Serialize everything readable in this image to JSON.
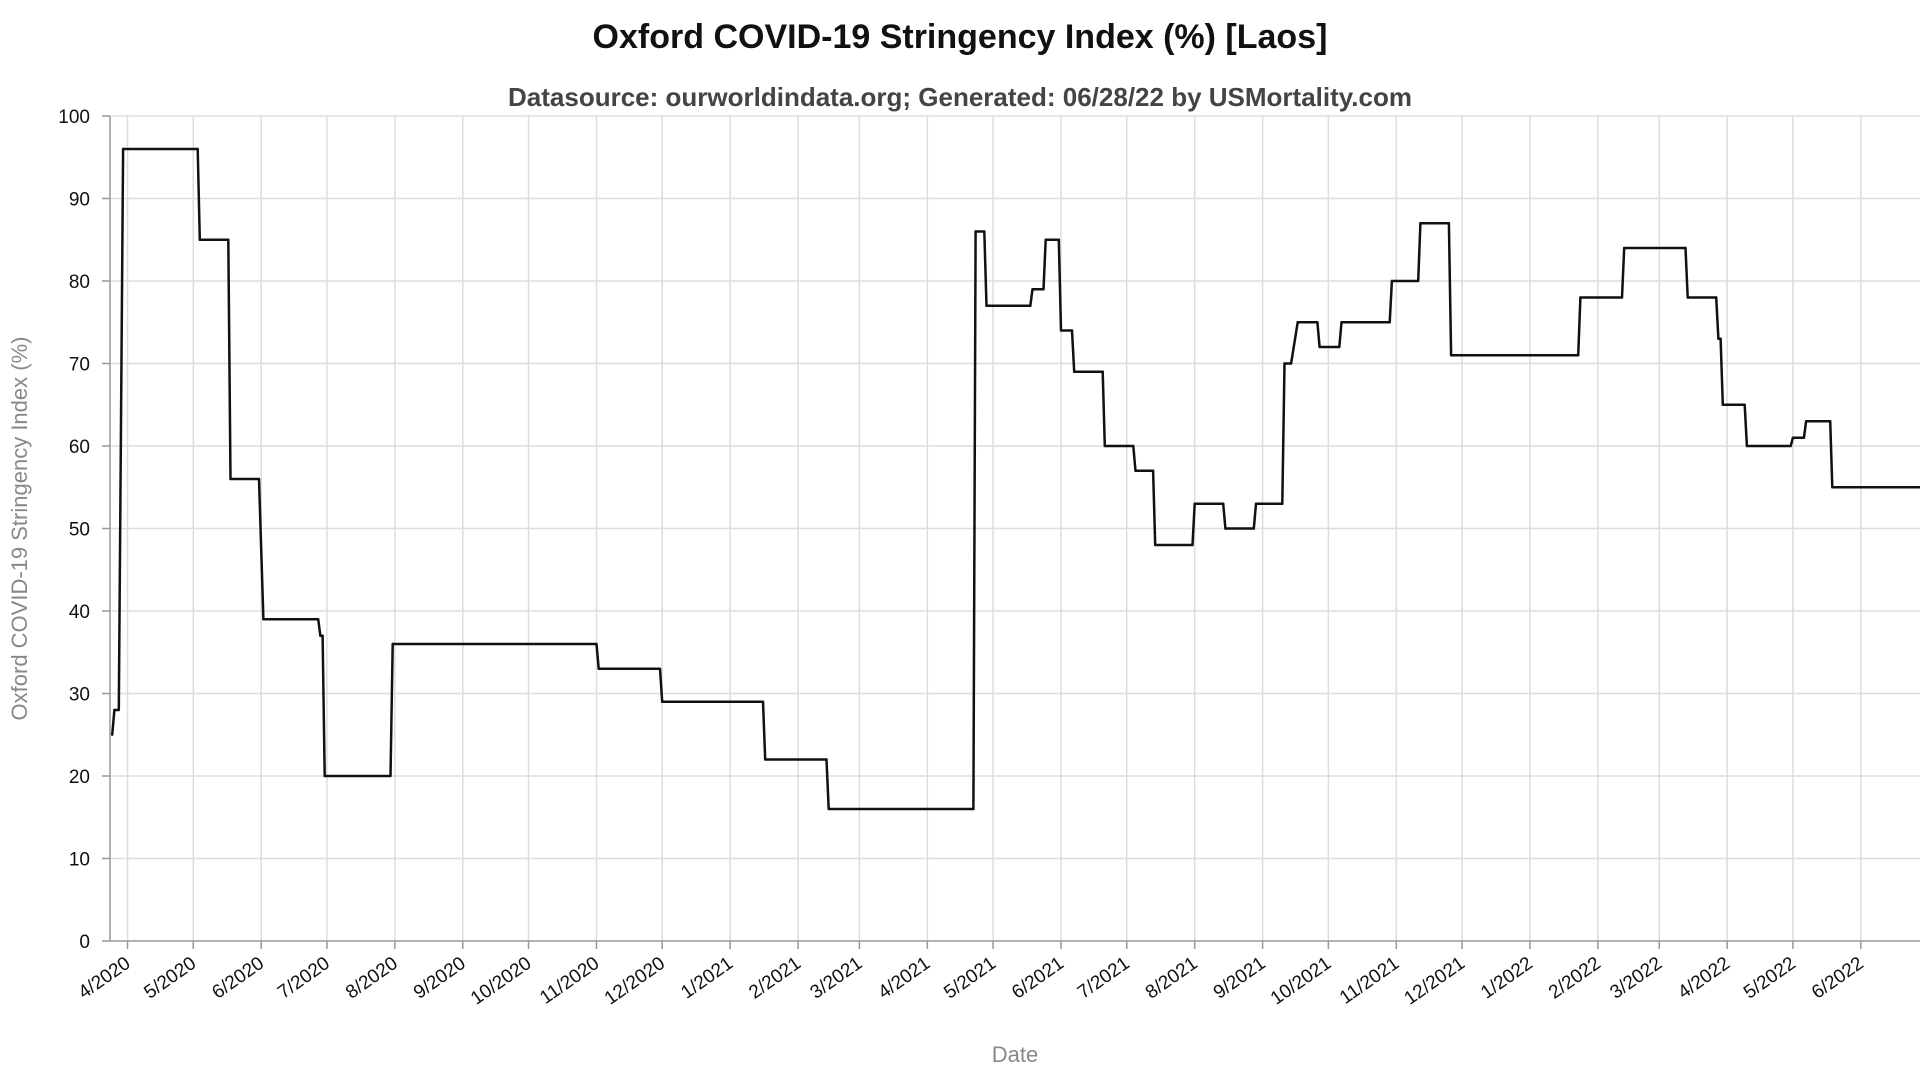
{
  "chart_data": {
    "type": "line",
    "title": "Oxford COVID-19 Stringency Index (%) [Laos]",
    "subtitle": "Datasource: ourworldindata.org; Generated: 06/28/22 by USMortality.com",
    "xlabel": "Date",
    "ylabel": "Oxford COVID-19 Stringency Index (%)",
    "ylim": [
      0,
      100
    ],
    "yticks": [
      0,
      10,
      20,
      30,
      40,
      50,
      60,
      70,
      80,
      90,
      100
    ],
    "xlim": [
      "2020-03-24",
      "2022-06-28"
    ],
    "xticks": [
      {
        "date": "2020-04-01",
        "label": "4/2020"
      },
      {
        "date": "2020-05-01",
        "label": "5/2020"
      },
      {
        "date": "2020-06-01",
        "label": "6/2020"
      },
      {
        "date": "2020-07-01",
        "label": "7/2020"
      },
      {
        "date": "2020-08-01",
        "label": "8/2020"
      },
      {
        "date": "2020-09-01",
        "label": "9/2020"
      },
      {
        "date": "2020-10-01",
        "label": "10/2020"
      },
      {
        "date": "2020-11-01",
        "label": "11/2020"
      },
      {
        "date": "2020-12-01",
        "label": "12/2020"
      },
      {
        "date": "2021-01-01",
        "label": "1/2021"
      },
      {
        "date": "2021-02-01",
        "label": "2/2021"
      },
      {
        "date": "2021-03-01",
        "label": "3/2021"
      },
      {
        "date": "2021-04-01",
        "label": "4/2021"
      },
      {
        "date": "2021-05-01",
        "label": "5/2021"
      },
      {
        "date": "2021-06-01",
        "label": "6/2021"
      },
      {
        "date": "2021-07-01",
        "label": "7/2021"
      },
      {
        "date": "2021-08-01",
        "label": "8/2021"
      },
      {
        "date": "2021-09-01",
        "label": "9/2021"
      },
      {
        "date": "2021-10-01",
        "label": "10/2021"
      },
      {
        "date": "2021-11-01",
        "label": "11/2021"
      },
      {
        "date": "2021-12-01",
        "label": "12/2021"
      },
      {
        "date": "2022-01-01",
        "label": "1/2022"
      },
      {
        "date": "2022-02-01",
        "label": "2/2022"
      },
      {
        "date": "2022-03-01",
        "label": "3/2022"
      },
      {
        "date": "2022-04-01",
        "label": "4/2022"
      },
      {
        "date": "2022-05-01",
        "label": "5/2022"
      },
      {
        "date": "2022-06-01",
        "label": "6/2022"
      }
    ],
    "grid": true,
    "line_color": "#111111",
    "series": [
      {
        "points": [
          [
            "2020-03-25",
            25
          ],
          [
            "2020-03-26",
            28
          ],
          [
            "2020-03-28",
            28
          ],
          [
            "2020-03-30",
            96
          ],
          [
            "2020-05-03",
            96
          ],
          [
            "2020-05-04",
            85
          ],
          [
            "2020-05-17",
            85
          ],
          [
            "2020-05-18",
            56
          ],
          [
            "2020-05-31",
            56
          ],
          [
            "2020-06-02",
            39
          ],
          [
            "2020-06-27",
            39
          ],
          [
            "2020-06-28",
            37
          ],
          [
            "2020-06-29",
            37
          ],
          [
            "2020-06-30",
            20
          ],
          [
            "2020-07-30",
            20
          ],
          [
            "2020-07-31",
            36
          ],
          [
            "2020-11-01",
            36
          ],
          [
            "2020-11-02",
            33
          ],
          [
            "2020-11-30",
            33
          ],
          [
            "2020-12-01",
            29
          ],
          [
            "2021-01-16",
            29
          ],
          [
            "2021-01-17",
            22
          ],
          [
            "2021-02-14",
            22
          ],
          [
            "2021-02-15",
            16
          ],
          [
            "2021-04-22",
            16
          ],
          [
            "2021-04-23",
            86
          ],
          [
            "2021-04-27",
            86
          ],
          [
            "2021-04-28",
            77
          ],
          [
            "2021-05-18",
            77
          ],
          [
            "2021-05-19",
            79
          ],
          [
            "2021-05-24",
            79
          ],
          [
            "2021-05-25",
            85
          ],
          [
            "2021-05-31",
            85
          ],
          [
            "2021-06-01",
            74
          ],
          [
            "2021-06-06",
            74
          ],
          [
            "2021-06-07",
            69
          ],
          [
            "2021-06-20",
            69
          ],
          [
            "2021-06-21",
            60
          ],
          [
            "2021-07-04",
            60
          ],
          [
            "2021-07-05",
            57
          ],
          [
            "2021-07-13",
            57
          ],
          [
            "2021-07-14",
            48
          ],
          [
            "2021-07-31",
            48
          ],
          [
            "2021-08-01",
            53
          ],
          [
            "2021-08-14",
            53
          ],
          [
            "2021-08-15",
            50
          ],
          [
            "2021-08-28",
            50
          ],
          [
            "2021-08-29",
            53
          ],
          [
            "2021-09-10",
            53
          ],
          [
            "2021-09-11",
            70
          ],
          [
            "2021-09-14",
            70
          ],
          [
            "2021-09-17",
            75
          ],
          [
            "2021-09-26",
            75
          ],
          [
            "2021-09-27",
            72
          ],
          [
            "2021-10-06",
            72
          ],
          [
            "2021-10-07",
            75
          ],
          [
            "2021-10-29",
            75
          ],
          [
            "2021-10-30",
            80
          ],
          [
            "2021-11-11",
            80
          ],
          [
            "2021-11-12",
            87
          ],
          [
            "2021-11-25",
            87
          ],
          [
            "2021-11-26",
            71
          ],
          [
            "2022-01-23",
            71
          ],
          [
            "2022-01-24",
            78
          ],
          [
            "2022-02-12",
            78
          ],
          [
            "2022-02-13",
            84
          ],
          [
            "2022-03-13",
            84
          ],
          [
            "2022-03-14",
            78
          ],
          [
            "2022-03-27",
            78
          ],
          [
            "2022-03-28",
            73
          ],
          [
            "2022-03-29",
            73
          ],
          [
            "2022-03-30",
            65
          ],
          [
            "2022-04-09",
            65
          ],
          [
            "2022-04-10",
            60
          ],
          [
            "2022-04-30",
            60
          ],
          [
            "2022-05-01",
            61
          ],
          [
            "2022-05-06",
            61
          ],
          [
            "2022-05-07",
            63
          ],
          [
            "2022-05-18",
            63
          ],
          [
            "2022-05-19",
            55
          ],
          [
            "2022-06-28",
            55
          ]
        ]
      }
    ]
  }
}
